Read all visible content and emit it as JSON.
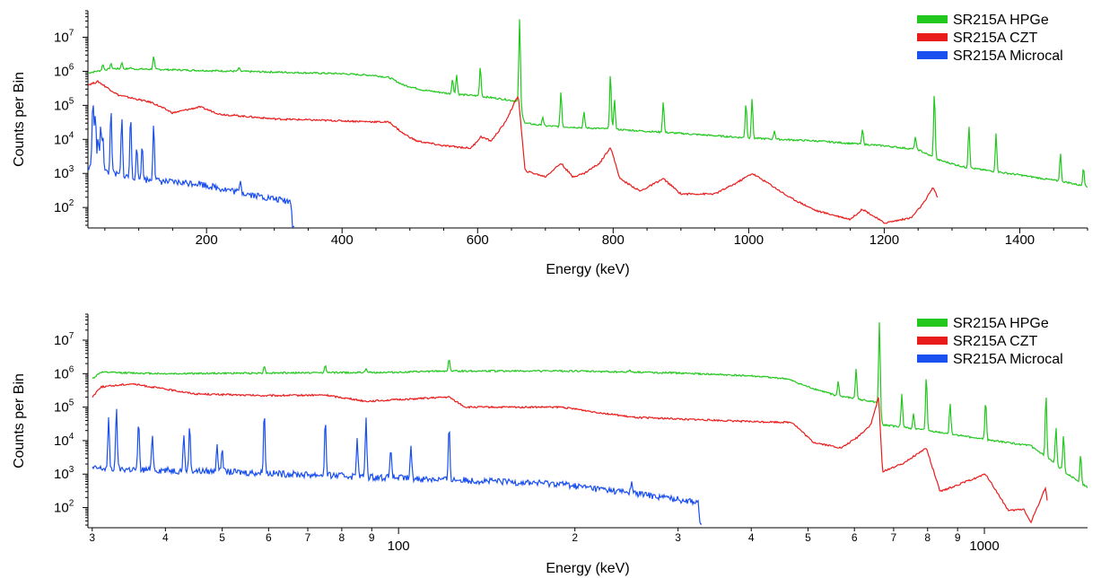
{
  "figure": {
    "colors": {
      "hpge": "#22c81e",
      "czt": "#ea1b1b",
      "microcal": "#1a4ff0"
    }
  },
  "chart_data": [
    {
      "type": "line",
      "xscale": "linear",
      "yscale": "log",
      "xlabel": "Energy (keV)",
      "ylabel": "Counts per Bin",
      "xlim": [
        25,
        1500
      ],
      "ylim": [
        25,
        60000000
      ],
      "xticks": [
        200,
        400,
        600,
        800,
        1000,
        1200,
        1400
      ],
      "xtick_labels": [
        "200",
        "400",
        "600",
        "800",
        "1000",
        "1200",
        "1400"
      ],
      "yticks": [
        100,
        1000,
        10000,
        100000,
        1000000,
        10000000
      ],
      "ytick_labels": [
        {
          "base": "10",
          "exp": "2"
        },
        {
          "base": "10",
          "exp": "3"
        },
        {
          "base": "10",
          "exp": "4"
        },
        {
          "base": "10",
          "exp": "5"
        },
        {
          "base": "10",
          "exp": "6"
        },
        {
          "base": "10",
          "exp": "7"
        }
      ],
      "legend_position": "top-right",
      "series": [
        {
          "name": "SR215A HPGe",
          "color": "#22c81e",
          "x_range": [
            25,
            1500
          ],
          "points": [
            [
              25,
              900000
            ],
            [
              60,
              1200000
            ],
            [
              120,
              1150000
            ],
            [
              200,
              1050000
            ],
            [
              300,
              950000
            ],
            [
              400,
              850000
            ],
            [
              450,
              750000
            ],
            [
              470,
              650000
            ],
            [
              490,
              400000
            ],
            [
              520,
              280000
            ],
            [
              560,
              220000
            ],
            [
              600,
              190000
            ],
            [
              640,
              150000
            ],
            [
              660,
              130000
            ],
            [
              670,
              30000
            ],
            [
              700,
              25000
            ],
            [
              800,
              20000
            ],
            [
              900,
              15000
            ],
            [
              1000,
              11000
            ],
            [
              1100,
              9000
            ],
            [
              1200,
              6500
            ],
            [
              1250,
              5000
            ],
            [
              1280,
              2500
            ],
            [
              1320,
              1500
            ],
            [
              1400,
              900
            ],
            [
              1470,
              550
            ],
            [
              1500,
              400
            ]
          ],
          "peaks": [
            [
              47,
              1600000
            ],
            [
              59,
              1700000
            ],
            [
              75,
              1800000
            ],
            [
              88,
              1300000
            ],
            [
              122,
              2800000
            ],
            [
              248,
              1300000
            ],
            [
              563,
              600000
            ],
            [
              569,
              800000
            ],
            [
              604,
              1400000
            ],
            [
              662,
              35000000
            ],
            [
              696,
              45000
            ],
            [
              723,
              250000
            ],
            [
              757,
              65000
            ],
            [
              796,
              900000
            ],
            [
              802,
              150000
            ],
            [
              874,
              130000
            ],
            [
              996,
              120000
            ],
            [
              1005,
              160000
            ],
            [
              1038,
              18000
            ],
            [
              1168,
              20000
            ],
            [
              1246,
              12000
            ],
            [
              1274,
              250000
            ],
            [
              1325,
              25000
            ],
            [
              1365,
              15000
            ],
            [
              1460,
              4000
            ],
            [
              1494,
              1500
            ]
          ]
        },
        {
          "name": "SR215A CZT",
          "color": "#ea1b1b",
          "x_range": [
            25,
            1280
          ],
          "points": [
            [
              25,
              400000
            ],
            [
              40,
              500000
            ],
            [
              70,
              200000
            ],
            [
              120,
              120000
            ],
            [
              150,
              60000
            ],
            [
              190,
              90000
            ],
            [
              220,
              55000
            ],
            [
              300,
              40000
            ],
            [
              400,
              35000
            ],
            [
              470,
              32000
            ],
            [
              490,
              15000
            ],
            [
              510,
              9000
            ],
            [
              550,
              6500
            ],
            [
              570,
              6000
            ],
            [
              590,
              5500
            ],
            [
              605,
              12000
            ],
            [
              620,
              9000
            ],
            [
              640,
              30000
            ],
            [
              660,
              200000
            ],
            [
              670,
              1200
            ],
            [
              700,
              800
            ],
            [
              723,
              2000
            ],
            [
              740,
              800
            ],
            [
              757,
              1000
            ],
            [
              780,
              2000
            ],
            [
              796,
              6000
            ],
            [
              810,
              700
            ],
            [
              840,
              300
            ],
            [
              874,
              700
            ],
            [
              900,
              250
            ],
            [
              950,
              250
            ],
            [
              980,
              500
            ],
            [
              1005,
              1000
            ],
            [
              1030,
              500
            ],
            [
              1060,
              200
            ],
            [
              1100,
              80
            ],
            [
              1150,
              45
            ],
            [
              1168,
              90
            ],
            [
              1200,
              35
            ],
            [
              1240,
              50
            ],
            [
              1260,
              150
            ],
            [
              1272,
              400
            ],
            [
              1280,
              170
            ]
          ]
        },
        {
          "name": "SR215A Microcal",
          "color": "#1a4ff0",
          "x_range": [
            25,
            330
          ],
          "points": [
            [
              25,
              1500
            ],
            [
              40,
              1300
            ],
            [
              60,
              1000
            ],
            [
              100,
              700
            ],
            [
              150,
              550
            ],
            [
              190,
              520
            ],
            [
              200,
              450
            ],
            [
              250,
              280
            ],
            [
              300,
              180
            ],
            [
              325,
              150
            ],
            [
              327,
              28
            ]
          ],
          "peaks": [
            [
              32,
              50000
            ],
            [
              33,
              100000
            ],
            [
              36,
              60000
            ],
            [
              40,
              12000
            ],
            [
              44,
              30000
            ],
            [
              47,
              14000
            ],
            [
              59,
              80000
            ],
            [
              75,
              45000
            ],
            [
              88,
              50000
            ],
            [
              97,
              6000
            ],
            [
              105,
              7000
            ],
            [
              122,
              30000
            ],
            [
              250,
              600
            ]
          ]
        }
      ]
    },
    {
      "type": "line",
      "xscale": "log",
      "yscale": "log",
      "xlabel": "Energy (keV)",
      "ylabel": "Counts per Bin",
      "xlim": [
        29.5,
        1500
      ],
      "ylim": [
        25,
        60000000
      ],
      "xticks": [
        30,
        40,
        50,
        60,
        70,
        80,
        90,
        100,
        200,
        300,
        400,
        500,
        600,
        700,
        800,
        900,
        1000
      ],
      "xtick_labels": [
        "3",
        "4",
        "5",
        "6",
        "7",
        "8",
        "9",
        "100",
        "2",
        "3",
        "4",
        "5",
        "6",
        "7",
        "8",
        "9",
        "1000"
      ],
      "yticks": [
        100,
        1000,
        10000,
        100000,
        1000000,
        10000000
      ],
      "ytick_labels": [
        {
          "base": "10",
          "exp": "2"
        },
        {
          "base": "10",
          "exp": "3"
        },
        {
          "base": "10",
          "exp": "4"
        },
        {
          "base": "10",
          "exp": "5"
        },
        {
          "base": "10",
          "exp": "6"
        },
        {
          "base": "10",
          "exp": "7"
        }
      ],
      "legend_position": "top-right",
      "series": [
        {
          "name": "SR215A HPGe",
          "color": "#22c81e",
          "x_range": [
            30,
            1500
          ],
          "points": [
            [
              30,
              700000
            ],
            [
              31,
              1100000
            ],
            [
              40,
              1000000
            ],
            [
              60,
              1050000
            ],
            [
              100,
              1100000
            ],
            [
              120,
              1200000
            ],
            [
              200,
              1200000
            ],
            [
              300,
              1050000
            ],
            [
              400,
              850000
            ],
            [
              460,
              700000
            ],
            [
              500,
              400000
            ],
            [
              560,
              220000
            ],
            [
              640,
              150000
            ],
            [
              660,
              130000
            ],
            [
              670,
              30000
            ],
            [
              800,
              20000
            ],
            [
              1000,
              11000
            ],
            [
              1200,
              7000
            ],
            [
              1300,
              2500
            ],
            [
              1400,
              900
            ],
            [
              1500,
              400
            ]
          ],
          "peaks": [
            [
              59,
              1700000
            ],
            [
              75,
              1800000
            ],
            [
              88,
              1400000
            ],
            [
              122,
              2800000
            ],
            [
              248,
              1300000
            ],
            [
              563,
              600000
            ],
            [
              604,
              1400000
            ],
            [
              662,
              35000000
            ],
            [
              723,
              250000
            ],
            [
              757,
              65000
            ],
            [
              796,
              900000
            ],
            [
              874,
              130000
            ],
            [
              1005,
              160000
            ],
            [
              1274,
              250000
            ],
            [
              1325,
              25000
            ],
            [
              1365,
              15000
            ],
            [
              1460,
              4000
            ]
          ]
        },
        {
          "name": "SR215A CZT",
          "color": "#ea1b1b",
          "x_range": [
            30,
            1280
          ],
          "points": [
            [
              30,
              200000
            ],
            [
              31,
              400000
            ],
            [
              35,
              500000
            ],
            [
              45,
              250000
            ],
            [
              59,
              220000
            ],
            [
              75,
              230000
            ],
            [
              88,
              150000
            ],
            [
              122,
              200000
            ],
            [
              130,
              100000
            ],
            [
              190,
              100000
            ],
            [
              250,
              50000
            ],
            [
              400,
              37000
            ],
            [
              470,
              35000
            ],
            [
              510,
              9000
            ],
            [
              570,
              6000
            ],
            [
              605,
              12000
            ],
            [
              640,
              30000
            ],
            [
              660,
              200000
            ],
            [
              670,
              1200
            ],
            [
              723,
              2000
            ],
            [
              796,
              6000
            ],
            [
              840,
              300
            ],
            [
              1005,
              1000
            ],
            [
              1100,
              80
            ],
            [
              1168,
              90
            ],
            [
              1200,
              35
            ],
            [
              1272,
              400
            ],
            [
              1280,
              170
            ]
          ]
        },
        {
          "name": "SR215A Microcal",
          "color": "#1a4ff0",
          "x_range": [
            30,
            330
          ],
          "points": [
            [
              30,
              1500
            ],
            [
              50,
              1200
            ],
            [
              80,
              900
            ],
            [
              120,
              700
            ],
            [
              190,
              520
            ],
            [
              200,
              450
            ],
            [
              250,
              280
            ],
            [
              300,
              180
            ],
            [
              325,
              150
            ],
            [
              327,
              28
            ]
          ],
          "peaks": [
            [
              32,
              50000
            ],
            [
              33,
              100000
            ],
            [
              36,
              40000
            ],
            [
              38,
              15000
            ],
            [
              43,
              15000
            ],
            [
              44,
              30000
            ],
            [
              49,
              8000
            ],
            [
              50,
              6000
            ],
            [
              59,
              80000
            ],
            [
              75,
              45000
            ],
            [
              85,
              12000
            ],
            [
              88,
              50000
            ],
            [
              97,
              6000
            ],
            [
              105,
              7000
            ],
            [
              122,
              30000
            ],
            [
              250,
              600
            ]
          ]
        }
      ]
    }
  ]
}
